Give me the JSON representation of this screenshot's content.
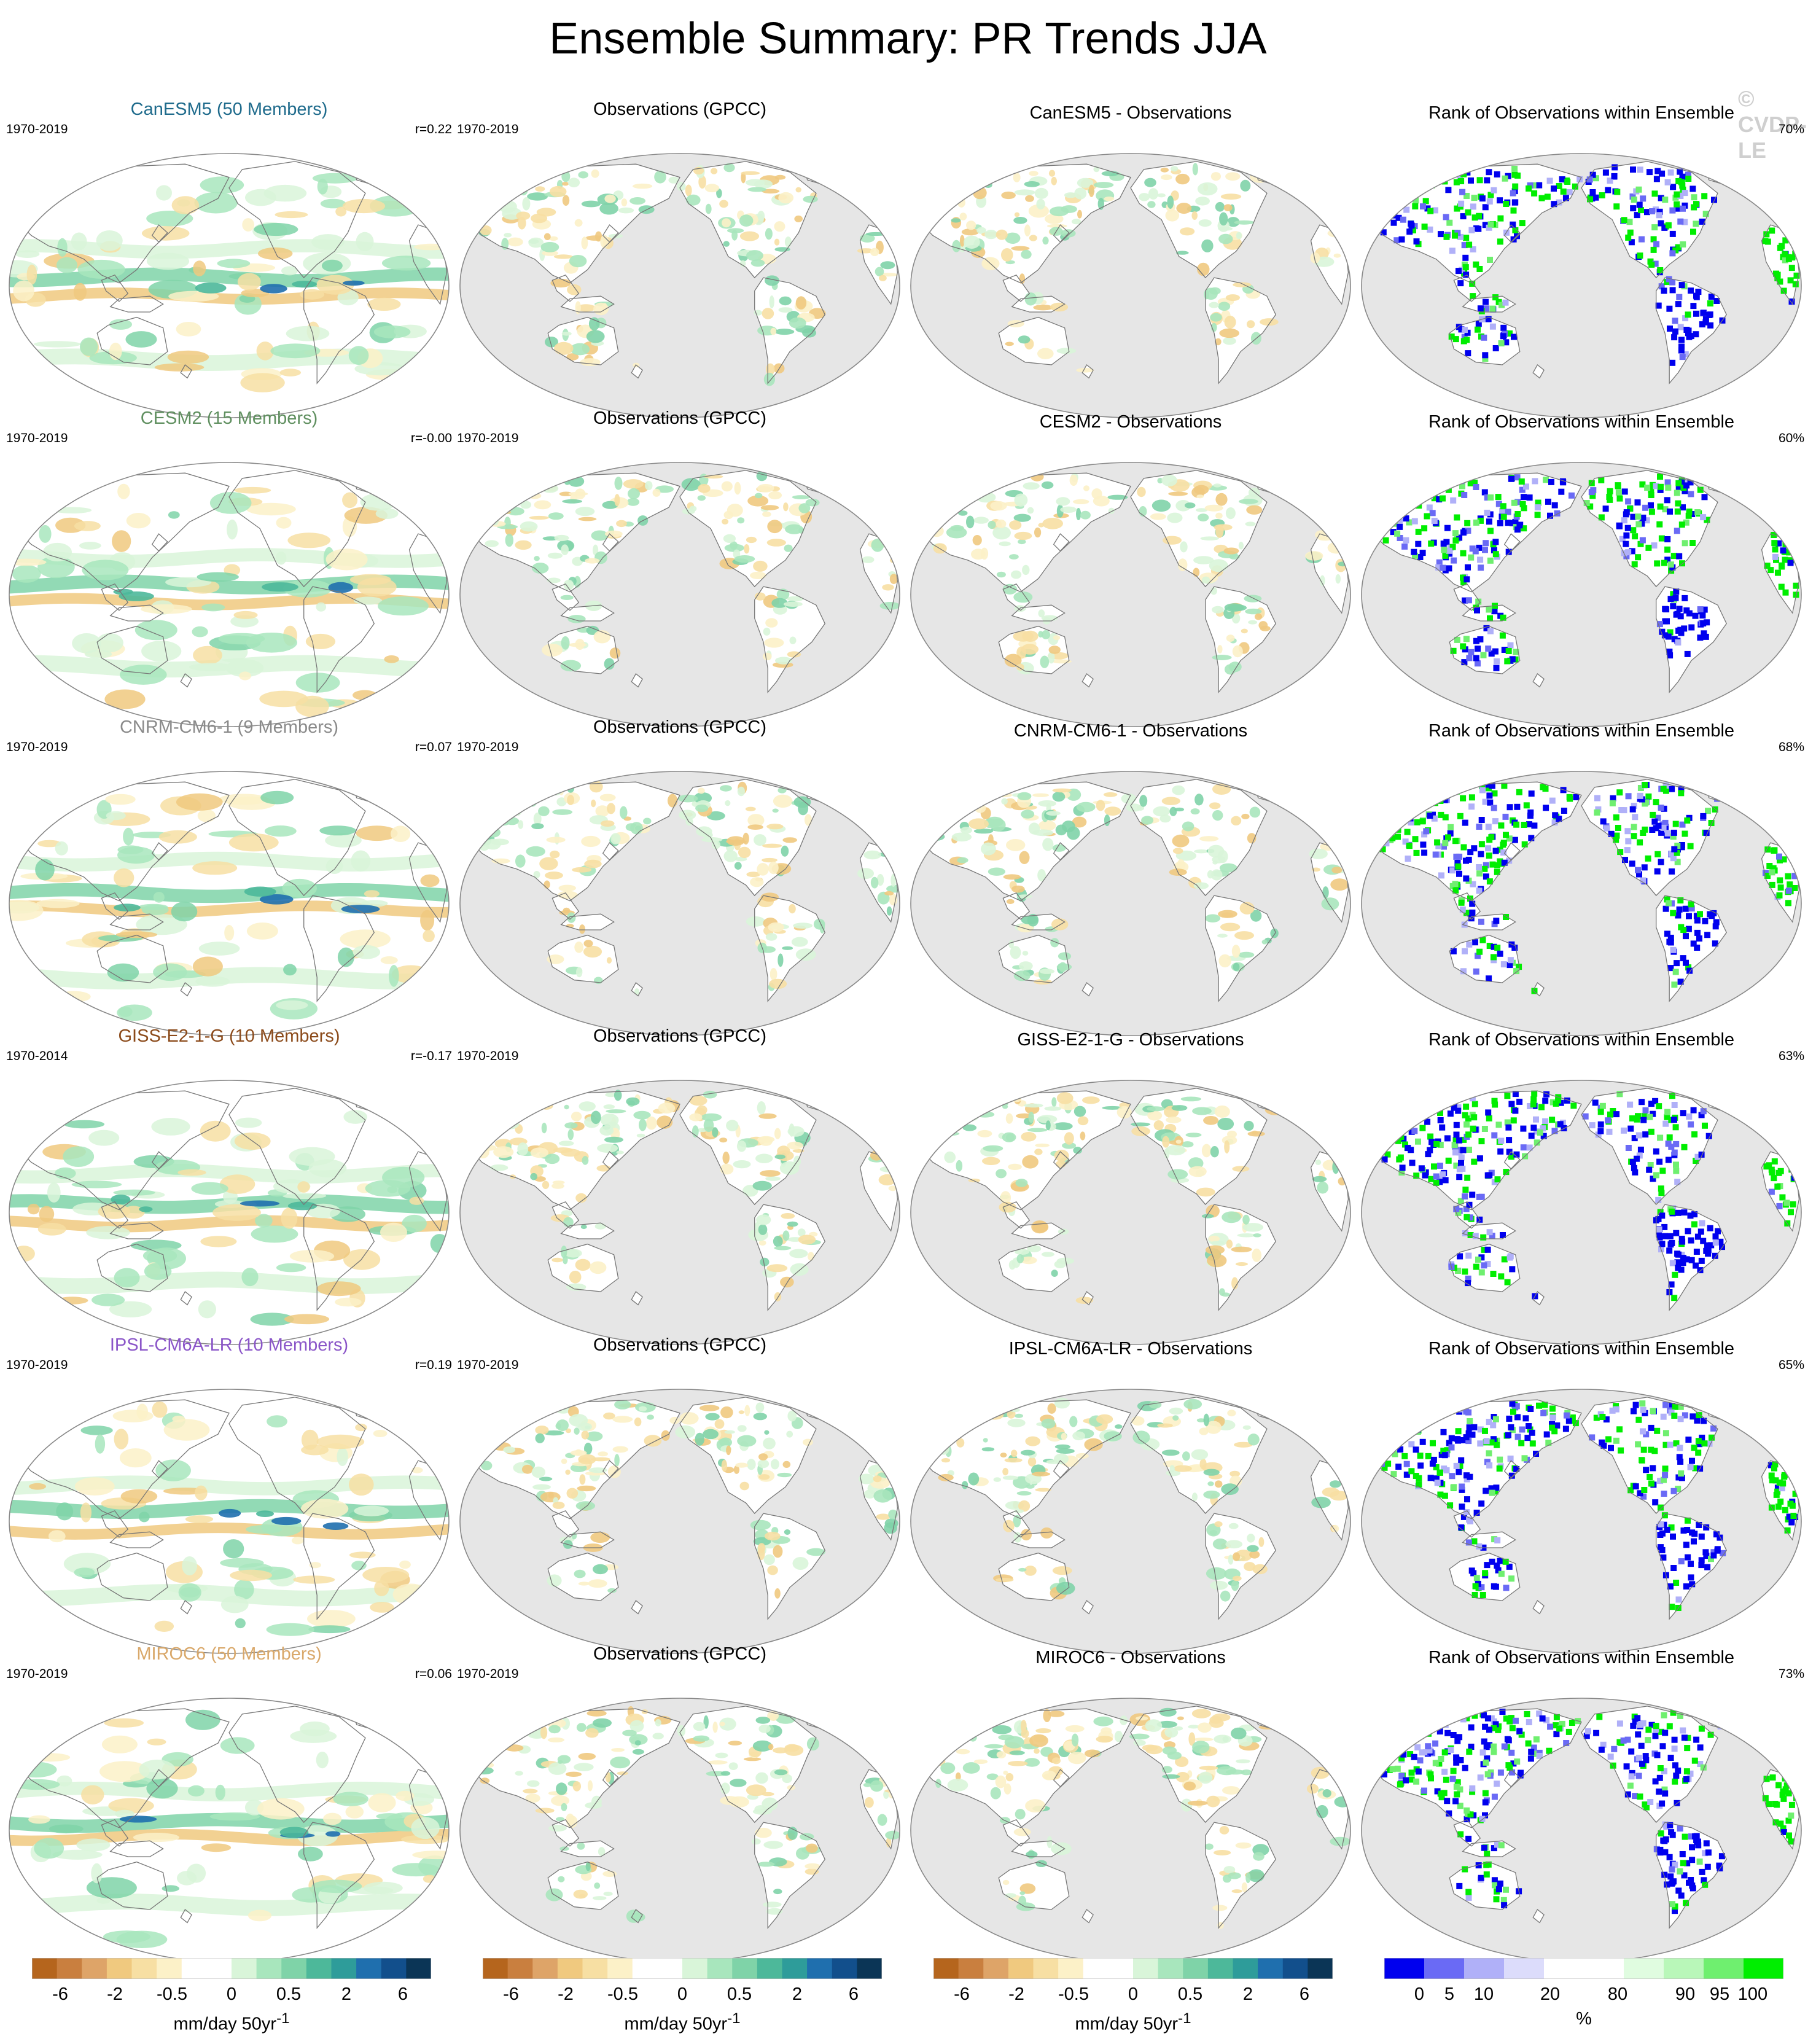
{
  "title": "Ensemble Summary: PR Trends JJA",
  "copyright": "© CVDP-LE",
  "colors": {
    "trend_scale": [
      "#b5651d",
      "#c97f3f",
      "#dea468",
      "#f0c97f",
      "#f7dfa3",
      "#fcf1c8",
      "#ffffff",
      "#ffffff",
      "#d9f5d9",
      "#a8e6bd",
      "#7fd3a8",
      "#4db89a",
      "#2e9c9a",
      "#1f6fae",
      "#124f8c",
      "#0b3556"
    ],
    "rank_scale": [
      "#0000ee",
      "#6a6af5",
      "#b0b0f8",
      "#dcdcfb",
      "#ffffff",
      "#ffffff",
      "#e0fce0",
      "#b9f7b9",
      "#6fef6f",
      "#00ee00"
    ],
    "ocean_fill": "#e6e6e6",
    "map_border": "#888888"
  },
  "rows": [
    {
      "model": {
        "title": "CanESM5 (50 Members)",
        "title_color": "#1f6b8c",
        "period": "1970-2019",
        "r": "r=0.22"
      },
      "obs": {
        "title": "Observations (GPCC)",
        "period": "1970-2019"
      },
      "diff": {
        "title": "CanESM5 - Observations"
      },
      "rank": {
        "title": "Rank of Observations within Ensemble",
        "pct": "70%"
      }
    },
    {
      "model": {
        "title": "CESM2 (15 Members)",
        "title_color": "#5f8f5f",
        "period": "1970-2019",
        "r": "r=-0.00"
      },
      "obs": {
        "title": "Observations (GPCC)",
        "period": "1970-2019"
      },
      "diff": {
        "title": "CESM2 - Observations"
      },
      "rank": {
        "title": "Rank of Observations within Ensemble",
        "pct": "60%"
      }
    },
    {
      "model": {
        "title": "CNRM-CM6-1 (9 Members)",
        "title_color": "#8a8a8a",
        "period": "1970-2019",
        "r": "r=0.07"
      },
      "obs": {
        "title": "Observations (GPCC)",
        "period": "1970-2019"
      },
      "diff": {
        "title": "CNRM-CM6-1 - Observations"
      },
      "rank": {
        "title": "Rank of Observations within Ensemble",
        "pct": "68%"
      }
    },
    {
      "model": {
        "title": "GISS-E2-1-G (10 Members)",
        "title_color": "#8b4a1a",
        "period": "1970-2014",
        "r": "r=-0.17"
      },
      "obs": {
        "title": "Observations (GPCC)",
        "period": "1970-2019"
      },
      "diff": {
        "title": "GISS-E2-1-G - Observations"
      },
      "rank": {
        "title": "Rank of Observations within Ensemble",
        "pct": "63%"
      }
    },
    {
      "model": {
        "title": "IPSL-CM6A-LR (10 Members)",
        "title_color": "#8a55c8",
        "period": "1970-2019",
        "r": "r=0.19"
      },
      "obs": {
        "title": "Observations (GPCC)",
        "period": "1970-2019"
      },
      "diff": {
        "title": "IPSL-CM6A-LR - Observations"
      },
      "rank": {
        "title": "Rank of Observations within Ensemble",
        "pct": "65%"
      }
    },
    {
      "model": {
        "title": "MIROC6 (50 Members)",
        "title_color": "#d9a86a",
        "period": "1970-2019",
        "r": "r=0.06"
      },
      "obs": {
        "title": "Observations (GPCC)",
        "period": "1970-2019"
      },
      "diff": {
        "title": "MIROC6 - Observations"
      },
      "rank": {
        "title": "Rank of Observations within Ensemble",
        "pct": "73%"
      }
    }
  ],
  "colorbars": {
    "trend": {
      "ticks": [
        "-6",
        "-2",
        "-0.5",
        "0",
        "0.5",
        "2",
        "6"
      ],
      "label": "mm/day 50yr",
      "label_sup": "-1"
    },
    "rank": {
      "ticks": [
        "0",
        "5",
        "10",
        "20",
        "80",
        "90",
        "95",
        "100"
      ],
      "label": "%"
    }
  }
}
